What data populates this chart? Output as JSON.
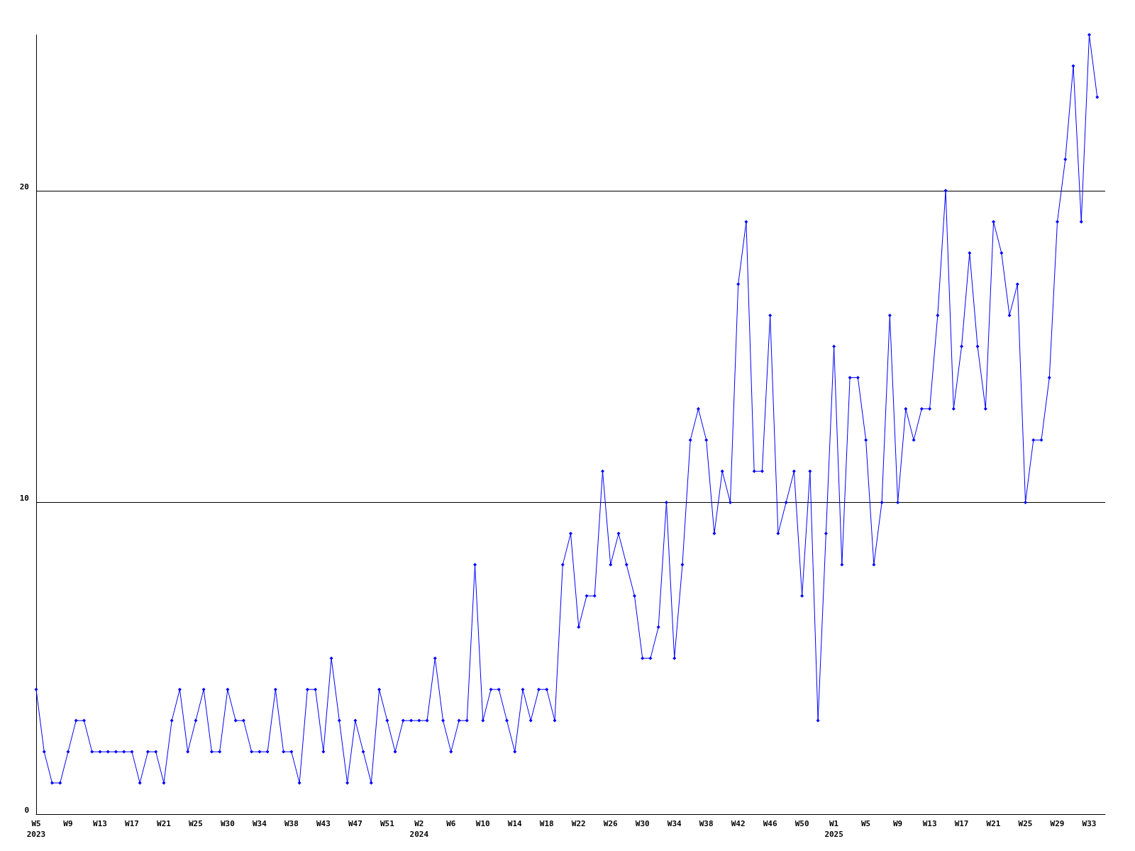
{
  "chart_data": {
    "type": "line",
    "categories": [
      "W5\n2023",
      null,
      null,
      null,
      "W9",
      null,
      null,
      null,
      "W13",
      null,
      null,
      null,
      "W17",
      null,
      null,
      null,
      "W21",
      null,
      null,
      null,
      "W25",
      null,
      null,
      null,
      "W30",
      null,
      null,
      null,
      "W34",
      null,
      null,
      null,
      "W38",
      null,
      null,
      null,
      "W43",
      null,
      null,
      null,
      "W47",
      null,
      null,
      null,
      "W51",
      null,
      null,
      null,
      "W2\n2024",
      null,
      null,
      null,
      "W6",
      null,
      null,
      null,
      "W10",
      null,
      null,
      null,
      "W14",
      null,
      null,
      null,
      "W18",
      null,
      null,
      null,
      "W22",
      null,
      null,
      null,
      "W26",
      null,
      null,
      null,
      "W30",
      null,
      null,
      null,
      "W34",
      null,
      null,
      null,
      "W38",
      null,
      null,
      null,
      "W42",
      null,
      null,
      null,
      "W46",
      null,
      null,
      null,
      "W50",
      null,
      null,
      null,
      "W1\n2025",
      null,
      null,
      null,
      "W5",
      null,
      null,
      null,
      "W9",
      null,
      null,
      null,
      "W13",
      null,
      null,
      null,
      "W17",
      null,
      null,
      null,
      "W21",
      null,
      null,
      null,
      "W25",
      null,
      null,
      null,
      "W29",
      null,
      null,
      null,
      "W33",
      null,
      null
    ],
    "series": [
      {
        "color": "#0000ff",
        "values": [
          4,
          2,
          1,
          1,
          2,
          3,
          3,
          2,
          2,
          2,
          2,
          2,
          2,
          1,
          2,
          2,
          1,
          3,
          4,
          2,
          3,
          4,
          2,
          2,
          4,
          3,
          3,
          2,
          2,
          2,
          4,
          2,
          2,
          1,
          4,
          4,
          2,
          5,
          3,
          1,
          3,
          2,
          1,
          4,
          3,
          2,
          3,
          3,
          3,
          3,
          5,
          3,
          2,
          3,
          3,
          8,
          3,
          4,
          4,
          3,
          2,
          4,
          3,
          4,
          4,
          3,
          8,
          9,
          6,
          7,
          7,
          11,
          8,
          9,
          8,
          7,
          5,
          5,
          6,
          10,
          5,
          8,
          12,
          13,
          12,
          9,
          11,
          10,
          17,
          19,
          11,
          11,
          16,
          9,
          10,
          11,
          7,
          11,
          3,
          9,
          15,
          8,
          14,
          14,
          12,
          8,
          10,
          16,
          10,
          13,
          12,
          13,
          13,
          16,
          20,
          13,
          15,
          18,
          15,
          13,
          19,
          18,
          16,
          17,
          10,
          12,
          12,
          14,
          19,
          21,
          24,
          19,
          25,
          23,
          null
        ]
      }
    ],
    "ylim": [
      0,
      25
    ],
    "yticks": [
      0,
      10,
      20
    ],
    "grid": "y",
    "marker": "diamond",
    "line_style": "solid"
  }
}
